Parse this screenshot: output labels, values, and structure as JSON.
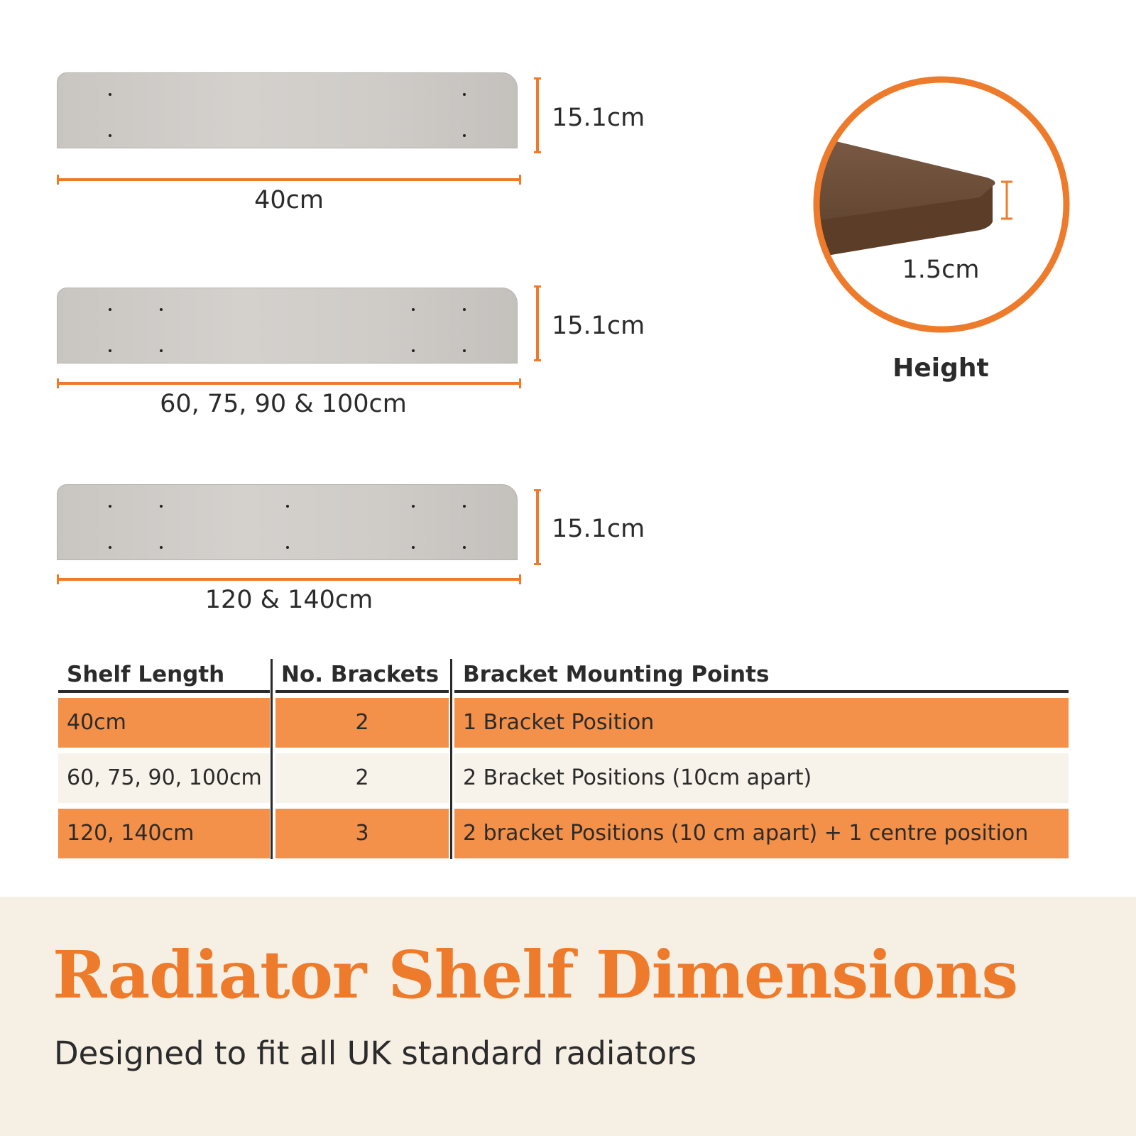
{
  "shelves": [
    {
      "width_label": "40cm",
      "height_label": "15.1cm",
      "bracket_columns": 2
    },
    {
      "width_label": "60, 75, 90 & 100cm",
      "height_label": "15.1cm",
      "bracket_columns": 4
    },
    {
      "width_label": "120 & 140cm",
      "height_label": "15.1cm",
      "bracket_columns": 5
    }
  ],
  "thickness": {
    "value": "1.5cm",
    "caption": "Height"
  },
  "table": {
    "headers": [
      "Shelf Length",
      "No. Brackets",
      "Bracket Mounting Points"
    ],
    "rows": [
      [
        "40cm",
        "2",
        "1 Bracket Position"
      ],
      [
        "60, 75, 90, 100cm",
        "2",
        "2 Bracket Positions (10cm apart)"
      ],
      [
        "120, 140cm",
        "3",
        "2 bracket Positions (10 cm apart) + 1 centre position"
      ]
    ]
  },
  "footer": {
    "title": "Radiator Shelf Dimensions",
    "subtitle": "Designed to fit all UK standard radiators"
  },
  "colors": {
    "accent": "#ee7b2b",
    "row_orange": "#f39049",
    "row_light": "#f7f2ea",
    "band": "#f6efe4"
  }
}
